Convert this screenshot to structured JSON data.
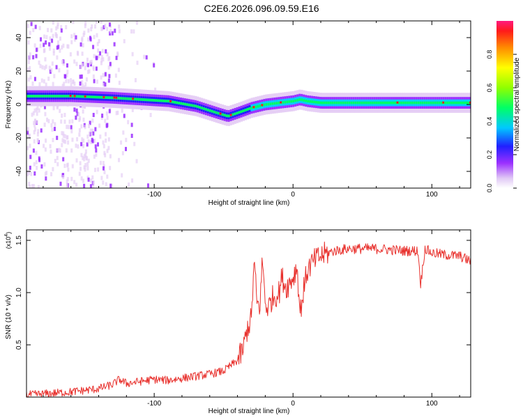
{
  "title": "C2E6.2026.096.09.59.E16",
  "chart_data": [
    {
      "type": "heatmap",
      "xlabel": "Height of straight line (km)",
      "ylabel": "Frequency (Hz)",
      "xlim": [
        -192,
        128
      ],
      "ylim": [
        -50,
        50
      ],
      "xticks": [
        -100,
        0,
        100
      ],
      "xtick_labels": [
        "-100",
        "0",
        "100"
      ],
      "yticks": [
        -40,
        -20,
        0,
        20,
        40
      ],
      "ytick_labels": [
        "-40",
        "-20",
        "0",
        "20",
        "40"
      ],
      "colorbar": {
        "label": "Normalized spectral amplitude",
        "range": [
          0,
          1
        ],
        "ticks": [
          0.0,
          0.2,
          0.4,
          0.6,
          0.8
        ],
        "tick_labels": [
          "0.0",
          "0.2",
          "0.4",
          "0.6",
          "0.8"
        ],
        "colors": [
          "#e6cff5",
          "#9b30ff",
          "#2222ff",
          "#00d0ff",
          "#00ff66",
          "#80ff00",
          "#ffff00",
          "#ff8c00",
          "#ff1a1a",
          "#ff1a80"
        ]
      },
      "ridge_center_hz": {
        "x": [
          -192,
          -160,
          -130,
          -110,
          -90,
          -70,
          -55,
          -47,
          -40,
          -30,
          -20,
          -10,
          0,
          5,
          10,
          20,
          40,
          60,
          80,
          100,
          128
        ],
        "y": [
          5,
          5,
          4,
          3,
          2,
          -1,
          -5,
          -7,
          -5,
          -2,
          0,
          1,
          2,
          3,
          2,
          1,
          1,
          1,
          1,
          1,
          1
        ]
      }
    },
    {
      "type": "line",
      "xlabel": "Height of straight line (km)",
      "ylabel": "SNR (10 * v/v)",
      "y_multiplier": "(x10",
      "y_multiplier_exp": "4",
      "xlim": [
        -192,
        128
      ],
      "ylim": [
        0,
        1.6
      ],
      "xticks": [
        -100,
        0,
        100
      ],
      "xtick_labels": [
        "-100",
        "0",
        "100"
      ],
      "yticks": [
        0.5,
        1.0,
        1.5
      ],
      "ytick_labels": [
        "0.5",
        "1.0",
        "1.5"
      ],
      "color": "#e8302c",
      "series": [
        {
          "name": "SNR",
          "x": [
            -192,
            -180,
            -160,
            -140,
            -130,
            -125,
            -120,
            -110,
            -100,
            -90,
            -80,
            -70,
            -60,
            -50,
            -45,
            -40,
            -36,
            -33,
            -30,
            -28,
            -26,
            -24,
            -22,
            -20,
            -18,
            -15,
            -10,
            -8,
            -5,
            -2,
            0,
            3,
            5,
            8,
            10,
            12,
            15,
            20,
            25,
            30,
            40,
            50,
            60,
            70,
            80,
            90,
            92,
            95,
            100,
            110,
            120,
            128
          ],
          "y": [
            0.02,
            0.03,
            0.05,
            0.08,
            0.12,
            0.17,
            0.13,
            0.15,
            0.17,
            0.16,
            0.18,
            0.2,
            0.22,
            0.25,
            0.3,
            0.35,
            0.45,
            0.65,
            0.75,
            1.3,
            0.9,
            0.85,
            1.32,
            0.9,
            0.85,
            0.95,
            1.0,
            1.15,
            1.05,
            1.1,
            1.15,
            1.25,
            0.8,
            1.05,
            1.2,
            1.25,
            1.3,
            1.35,
            1.38,
            1.4,
            1.42,
            1.42,
            1.42,
            1.41,
            1.4,
            1.4,
            1.08,
            1.42,
            1.38,
            1.36,
            1.35,
            1.3
          ]
        }
      ]
    }
  ]
}
